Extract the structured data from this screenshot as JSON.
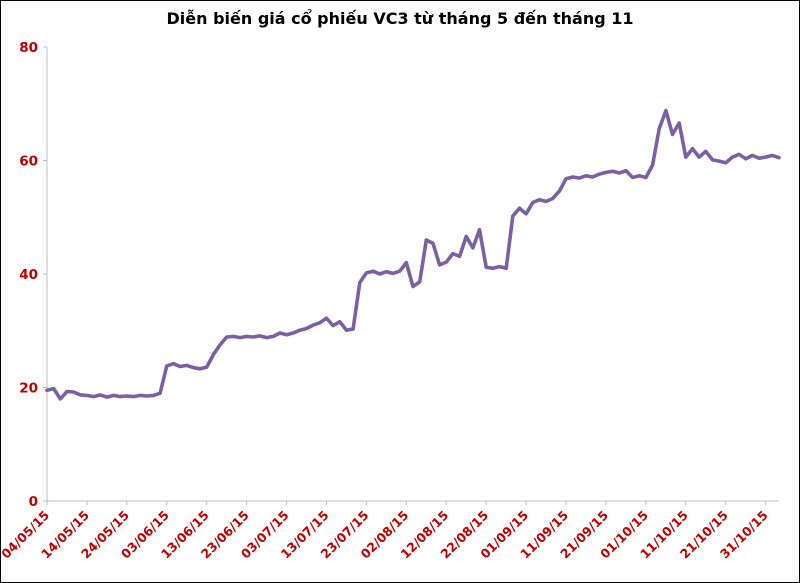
{
  "title": "Diễn biến giá cổ phiếu VC3 từ tháng 5 đến tháng 11",
  "chart_data": {
    "type": "line",
    "title": "Diễn biến giá cổ phiếu VC3 từ tháng 5 đến tháng 11",
    "series_name": "VC3",
    "xlabel": "",
    "ylabel": "",
    "ylim": [
      0,
      80
    ],
    "yticks": [
      0,
      20,
      40,
      60,
      80
    ],
    "grid": false,
    "legend_position": "none",
    "line_color": "#7D60A3",
    "axis_label_color": "#C00000",
    "axis_line_color": "#BFBFBF",
    "tick_every": 6,
    "x_tick_labels": [
      "04/05/15",
      "14/05/15",
      "24/05/15",
      "03/06/15",
      "13/06/15",
      "23/06/15",
      "03/07/15",
      "13/07/15",
      "23/07/15",
      "02/08/15",
      "12/08/15",
      "22/08/15",
      "01/09/15",
      "11/09/15",
      "21/09/15",
      "01/10/15",
      "11/10/15",
      "21/10/15",
      "31/10/15"
    ],
    "values": [
      19.5,
      19.8,
      18.0,
      19.3,
      19.2,
      18.7,
      18.6,
      18.4,
      18.7,
      18.3,
      18.6,
      18.4,
      18.5,
      18.4,
      18.6,
      18.5,
      18.6,
      19.0,
      23.8,
      24.2,
      23.7,
      23.9,
      23.5,
      23.3,
      23.6,
      25.8,
      27.5,
      28.9,
      29.0,
      28.8,
      29.0,
      28.9,
      29.1,
      28.8,
      29.0,
      29.6,
      29.3,
      29.6,
      30.1,
      30.4,
      31.0,
      31.4,
      32.2,
      30.9,
      31.6,
      30.1,
      30.3,
      38.5,
      40.2,
      40.5,
      40.0,
      40.4,
      40.1,
      40.5,
      42.0,
      37.8,
      38.6,
      46.0,
      45.4,
      41.6,
      42.1,
      43.6,
      43.1,
      46.6,
      44.6,
      47.8,
      41.2,
      41.0,
      41.3,
      41.0,
      50.2,
      51.6,
      50.6,
      52.6,
      53.1,
      52.8,
      53.3,
      54.6,
      56.8,
      57.1,
      56.9,
      57.3,
      57.1,
      57.6,
      57.9,
      58.1,
      57.8,
      58.2,
      57.0,
      57.3,
      57.0,
      59.2,
      65.6,
      68.8,
      64.6,
      66.6,
      60.6,
      62.1,
      60.6,
      61.6,
      60.1,
      59.9,
      59.6,
      60.6,
      61.1,
      60.3,
      60.9,
      60.4,
      60.6,
      60.9,
      60.5
    ]
  }
}
